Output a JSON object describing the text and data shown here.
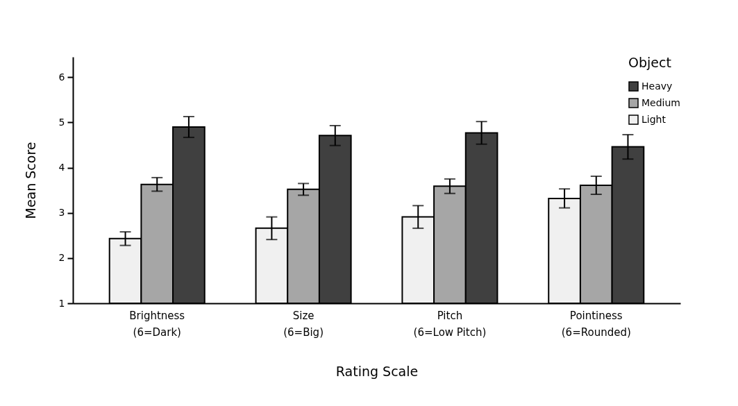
{
  "chart_data": {
    "type": "bar",
    "xlabel": "Rating Scale",
    "ylabel": "Mean Score",
    "legend_title": "Object",
    "legend": "top right",
    "categories": [
      "Brightness\n(6=Dark)",
      "Size\n(6=Big)",
      "Pitch\n(6=Low Pitch)",
      "Pointiness\n(6=Rounded)"
    ],
    "series": [
      {
        "name": "Light",
        "color": "#f0f0f0",
        "values": [
          2.43,
          2.66,
          2.91,
          3.32
        ],
        "errors": [
          0.15,
          0.25,
          0.25,
          0.21
        ]
      },
      {
        "name": "Medium",
        "color": "#a6a6a6",
        "values": [
          3.63,
          3.52,
          3.59,
          3.61
        ],
        "errors": [
          0.15,
          0.13,
          0.16,
          0.2
        ]
      },
      {
        "name": "Heavy",
        "color": "#404040",
        "values": [
          4.9,
          4.71,
          4.77,
          4.46
        ],
        "errors": [
          0.23,
          0.22,
          0.25,
          0.27
        ]
      }
    ],
    "ylim": [
      1,
      6.45
    ],
    "yticks": [
      1,
      2,
      3,
      4,
      5,
      6
    ],
    "grid": false
  }
}
